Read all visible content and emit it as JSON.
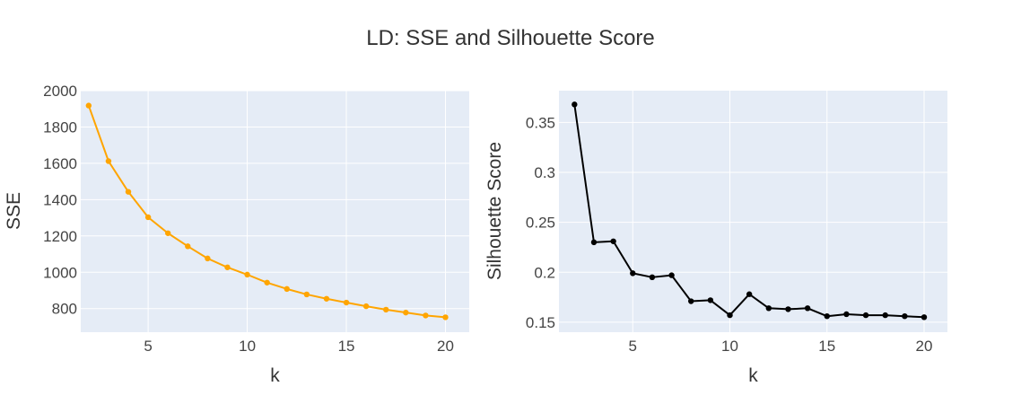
{
  "figure": {
    "title": "LD: SSE and Silhouette Score",
    "plot_bg": "#e5ecf6",
    "grid_color": "#ffffff"
  },
  "chart_data": [
    {
      "type": "line",
      "title": "",
      "xlabel": "k",
      "ylabel": "SSE",
      "x": [
        2,
        3,
        4,
        5,
        6,
        7,
        8,
        9,
        10,
        11,
        12,
        13,
        14,
        15,
        16,
        17,
        18,
        19,
        20
      ],
      "series": [
        {
          "color": "#ffa500",
          "marker": "circle",
          "values": [
            1918,
            1612,
            1443,
            1303,
            1215,
            1143,
            1076,
            1027,
            987,
            943,
            908,
            878,
            854,
            833,
            813,
            794,
            778,
            762,
            752
          ]
        }
      ],
      "xlim": [
        1.6,
        21.2
      ],
      "ylim": [
        670,
        2000
      ],
      "xticks": [
        "5",
        "10",
        "15",
        "20"
      ],
      "yticks": [
        "800",
        "1000",
        "1200",
        "1400",
        "1600",
        "1800",
        "2000"
      ],
      "grid": true,
      "legend": "none"
    },
    {
      "type": "line",
      "title": "",
      "xlabel": "k",
      "ylabel": "Silhouette Score",
      "x": [
        2,
        3,
        4,
        5,
        6,
        7,
        8,
        9,
        10,
        11,
        12,
        13,
        14,
        15,
        16,
        17,
        18,
        19,
        20
      ],
      "series": [
        {
          "color": "#000000",
          "marker": "circle",
          "values": [
            0.368,
            0.23,
            0.231,
            0.199,
            0.195,
            0.197,
            0.171,
            0.172,
            0.157,
            0.178,
            0.164,
            0.163,
            0.164,
            0.156,
            0.158,
            0.157,
            0.157,
            0.156,
            0.155
          ]
        }
      ],
      "xlim": [
        1.2,
        21.2
      ],
      "ylim": [
        0.14,
        0.3818
      ],
      "xticks": [
        "5",
        "10",
        "15",
        "20"
      ],
      "yticks": [
        "0.15",
        "0.2",
        "0.25",
        "0.3",
        "0.35"
      ],
      "grid": true,
      "legend": "none"
    }
  ]
}
